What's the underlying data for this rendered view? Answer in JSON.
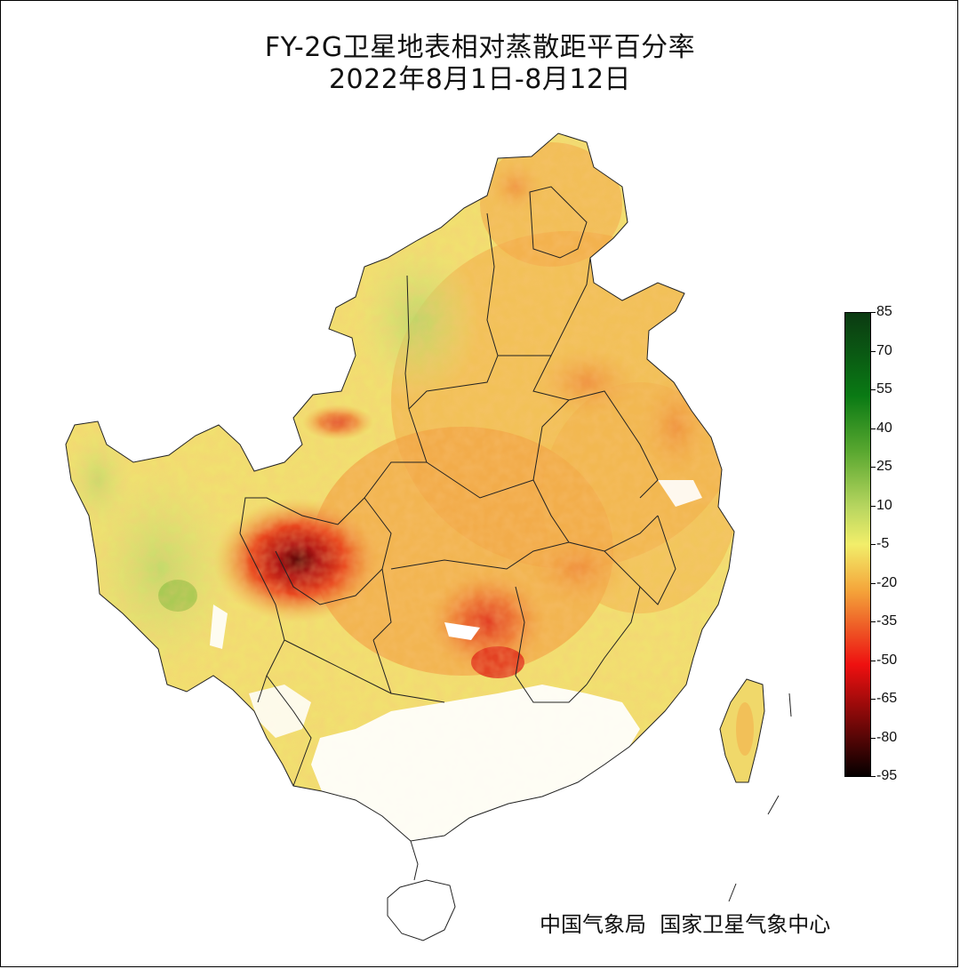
{
  "title": {
    "line1": "FY-2G卫星地表相对蒸散距平百分率",
    "line2": "2022年8月1日-8月12日"
  },
  "credit": "中国气象局  国家卫星气象中心",
  "legend": {
    "ticks": [
      "85",
      "70",
      "55",
      "40",
      "25",
      "10",
      "-5",
      "-20",
      "-35",
      "-50",
      "-65",
      "-80",
      "-95"
    ],
    "colors": {
      "top": "#0b3a12",
      "upper_green": "#0a7a14",
      "mid_green": "#5aa830",
      "light_green": "#b8d660",
      "yellow": "#f2ee6a",
      "orange": "#f4a43a",
      "red_orange": "#ee5a26",
      "red": "#ee1010",
      "dark_red": "#7a0808",
      "bottom": "#050000"
    }
  },
  "map_colors": {
    "base_yellow": "#f1e676",
    "orange": "#f3b04c",
    "deep_orange": "#ee7a36",
    "red": "#e0301e",
    "dark_red": "#7a1010",
    "green": "#c6dc6a",
    "deep_green": "#96c248",
    "no_data": "#ffffff",
    "border": "#222222"
  }
}
